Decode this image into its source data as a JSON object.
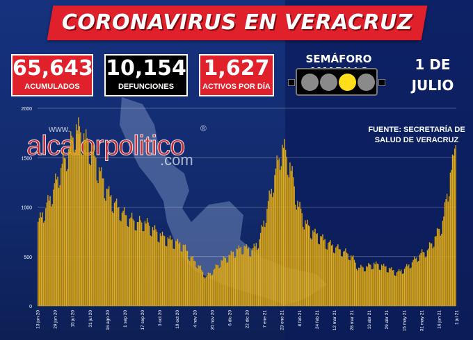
{
  "header": {
    "title": "CORONAVIRUS EN VERACRUZ"
  },
  "stats": [
    {
      "value": "65,643",
      "label": "ACUMULADOS"
    },
    {
      "value": "10,154",
      "label": "DEFUNCIONES"
    },
    {
      "value": "1,627",
      "label": "ACTIVOS POR DÍA"
    }
  ],
  "semaforo": {
    "label": "SEMÁFORO AMARILLO",
    "lights": [
      "#8a8a8a",
      "#8a8a8a",
      "#ffdf1a",
      "#8a8a8a"
    ]
  },
  "date": {
    "line1": "1 DE",
    "line2": "JULIO"
  },
  "watermark": {
    "www": "www.",
    "main": "alcalorpolitico",
    "com": ".com",
    "reg": "®"
  },
  "source": {
    "line1": "FUENTE: SECRETARÍA DE",
    "line2": "SALUD DE VERACRUZ"
  },
  "colors": {
    "bar": "#e6b21e",
    "bar_edge": "#b8860b",
    "red": "#e0202a",
    "grid": "#ffffff"
  },
  "chart_data": {
    "type": "bar",
    "title": "",
    "xlabel": "",
    "ylabel": "",
    "ylim": [
      0,
      2000
    ],
    "yticks": [
      0,
      500,
      1000,
      1500,
      2000
    ],
    "grid": true,
    "start_date": "2020-06-13",
    "end_date": "2021-07-01",
    "xtick_labels": [
      "13 jun 20",
      "29 jun 20",
      "15 jul 20",
      "31 jul 20",
      "16 ago 20",
      "1 sep 20",
      "17 sep 20",
      "3 oct 20",
      "19 oct 20",
      "4 nov 20",
      "20 nov 20",
      "6 dic 20",
      "22 dic 20",
      "7 ene 21",
      "23 ene 21",
      "8 feb 21",
      "24 feb 21",
      "12 mar 21",
      "28 mar 21",
      "13 abr 21",
      "29 abr 21",
      "15 may 21",
      "31 may 21",
      "16 jun 21",
      "1 jul 21"
    ],
    "keypoints": [
      [
        "2020-06-13",
        850
      ],
      [
        "2020-06-20",
        1000
      ],
      [
        "2020-06-27",
        1200
      ],
      [
        "2020-07-04",
        1420
      ],
      [
        "2020-07-11",
        1600
      ],
      [
        "2020-07-18",
        1830
      ],
      [
        "2020-07-25",
        1720
      ],
      [
        "2020-08-01",
        1600
      ],
      [
        "2020-08-08",
        1380
      ],
      [
        "2020-08-15",
        1180
      ],
      [
        "2020-08-22",
        1050
      ],
      [
        "2020-08-29",
        960
      ],
      [
        "2020-09-05",
        900
      ],
      [
        "2020-09-12",
        860
      ],
      [
        "2020-09-19",
        860
      ],
      [
        "2020-09-26",
        790
      ],
      [
        "2020-10-03",
        720
      ],
      [
        "2020-10-10",
        680
      ],
      [
        "2020-10-17",
        650
      ],
      [
        "2020-10-24",
        620
      ],
      [
        "2020-10-31",
        500
      ],
      [
        "2020-11-07",
        420
      ],
      [
        "2020-11-14",
        300
      ],
      [
        "2020-11-21",
        370
      ],
      [
        "2020-11-28",
        460
      ],
      [
        "2020-12-05",
        510
      ],
      [
        "2020-12-12",
        570
      ],
      [
        "2020-12-19",
        600
      ],
      [
        "2020-12-26",
        560
      ],
      [
        "2021-01-02",
        680
      ],
      [
        "2021-01-09",
        1000
      ],
      [
        "2021-01-16",
        1350
      ],
      [
        "2021-01-23",
        1650
      ],
      [
        "2021-01-30",
        1450
      ],
      [
        "2021-02-06",
        1050
      ],
      [
        "2021-02-13",
        850
      ],
      [
        "2021-02-20",
        750
      ],
      [
        "2021-02-27",
        700
      ],
      [
        "2021-03-06",
        640
      ],
      [
        "2021-03-13",
        600
      ],
      [
        "2021-03-20",
        560
      ],
      [
        "2021-03-27",
        520
      ],
      [
        "2021-04-03",
        390
      ],
      [
        "2021-04-10",
        400
      ],
      [
        "2021-04-17",
        430
      ],
      [
        "2021-04-24",
        410
      ],
      [
        "2021-05-01",
        380
      ],
      [
        "2021-05-08",
        340
      ],
      [
        "2021-05-15",
        380
      ],
      [
        "2021-05-22",
        450
      ],
      [
        "2021-05-29",
        530
      ],
      [
        "2021-06-05",
        570
      ],
      [
        "2021-06-12",
        700
      ],
      [
        "2021-06-19",
        850
      ],
      [
        "2021-06-24",
        1200
      ],
      [
        "2021-07-01",
        1627
      ]
    ]
  }
}
